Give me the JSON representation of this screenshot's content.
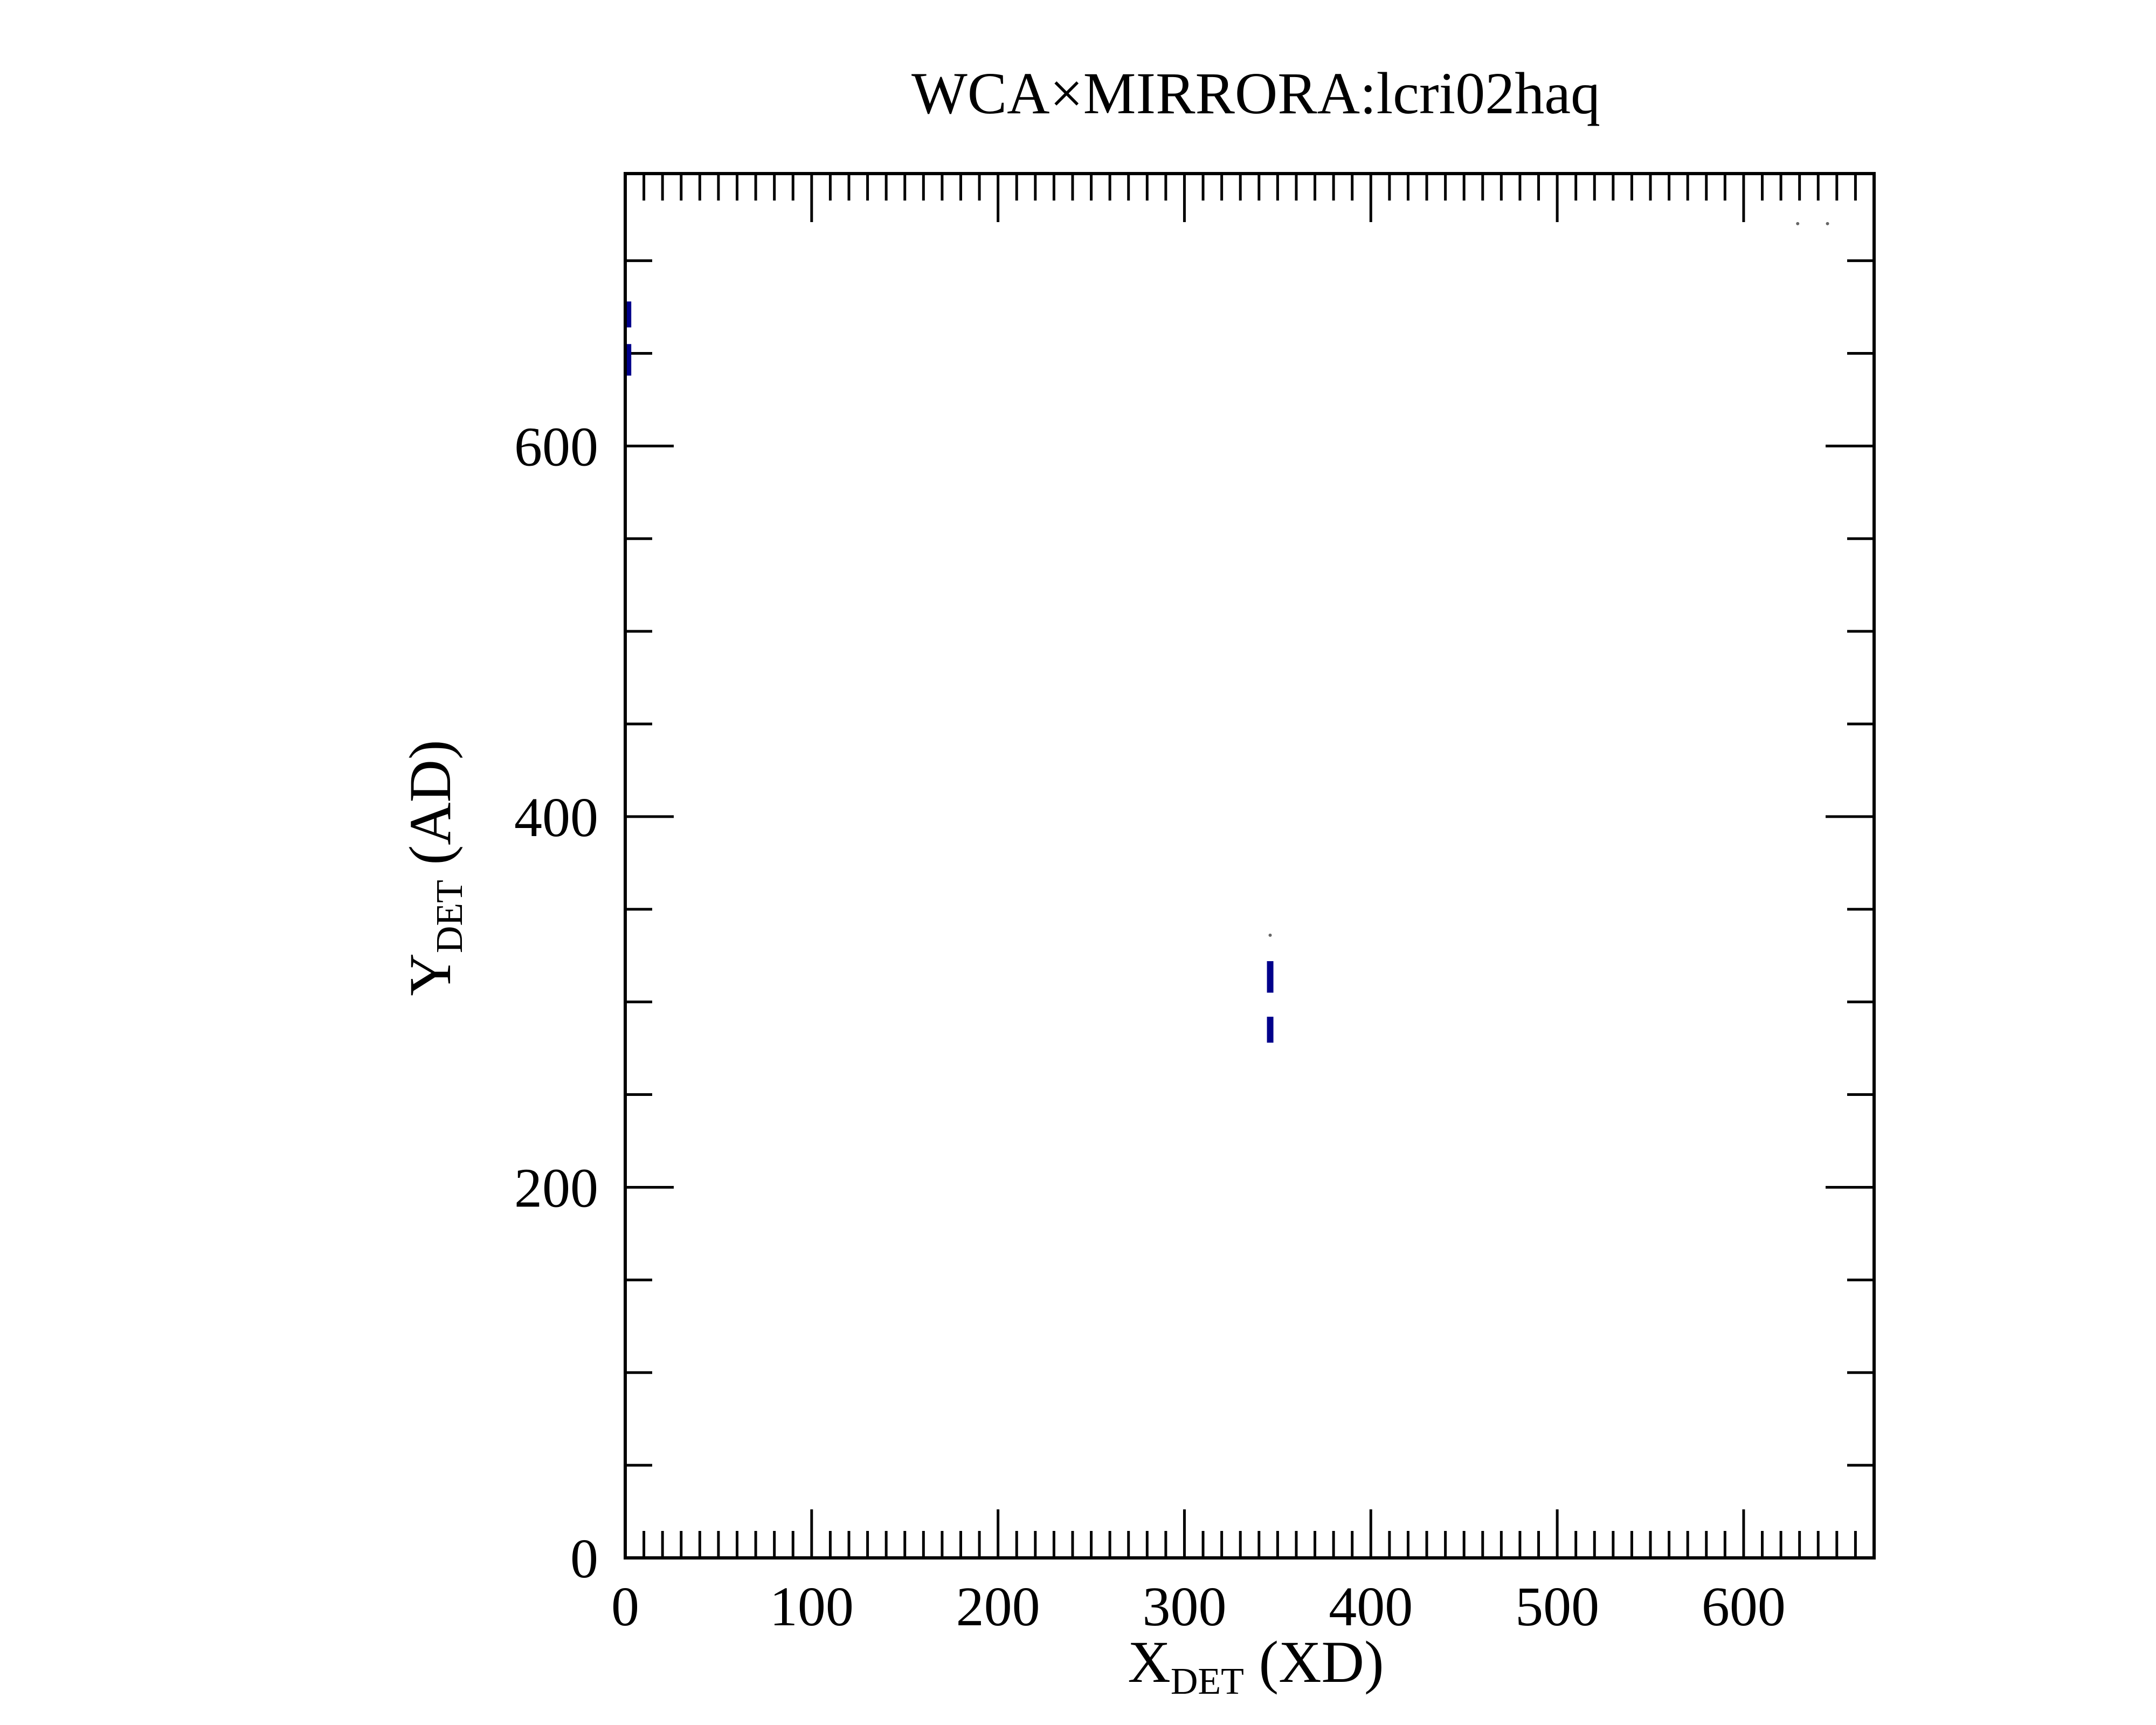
{
  "chart_data": {
    "type": "scatter",
    "title": "WCA×MIRRORA:lcri02haq",
    "xlabel": {
      "main": "X",
      "sub": "DET",
      "suffix": " (XD)"
    },
    "ylabel": {
      "main": "Y",
      "sub": "DET",
      "suffix": " (AD)"
    },
    "xlim": [
      0,
      670
    ],
    "ylim": [
      0,
      747
    ],
    "x_ticks": [
      0,
      100,
      200,
      300,
      400,
      500,
      600
    ],
    "y_ticks": [
      0,
      200,
      400,
      600
    ],
    "x_minor_step": 10,
    "y_minor_step": 50,
    "grid": false,
    "legend": "none",
    "marker_color": "#00008b",
    "segments": [
      {
        "x": 1.5,
        "y0": 678,
        "y1": 664
      },
      {
        "x": 1.5,
        "y0": 655,
        "y1": 638
      },
      {
        "x": 346,
        "y0": 322,
        "y1": 305
      },
      {
        "x": 346,
        "y0": 292,
        "y1": 278
      }
    ],
    "faint_points": [
      {
        "x": 346,
        "y": 336
      },
      {
        "x": 629,
        "y": 720
      },
      {
        "x": 645,
        "y": 720
      }
    ]
  }
}
